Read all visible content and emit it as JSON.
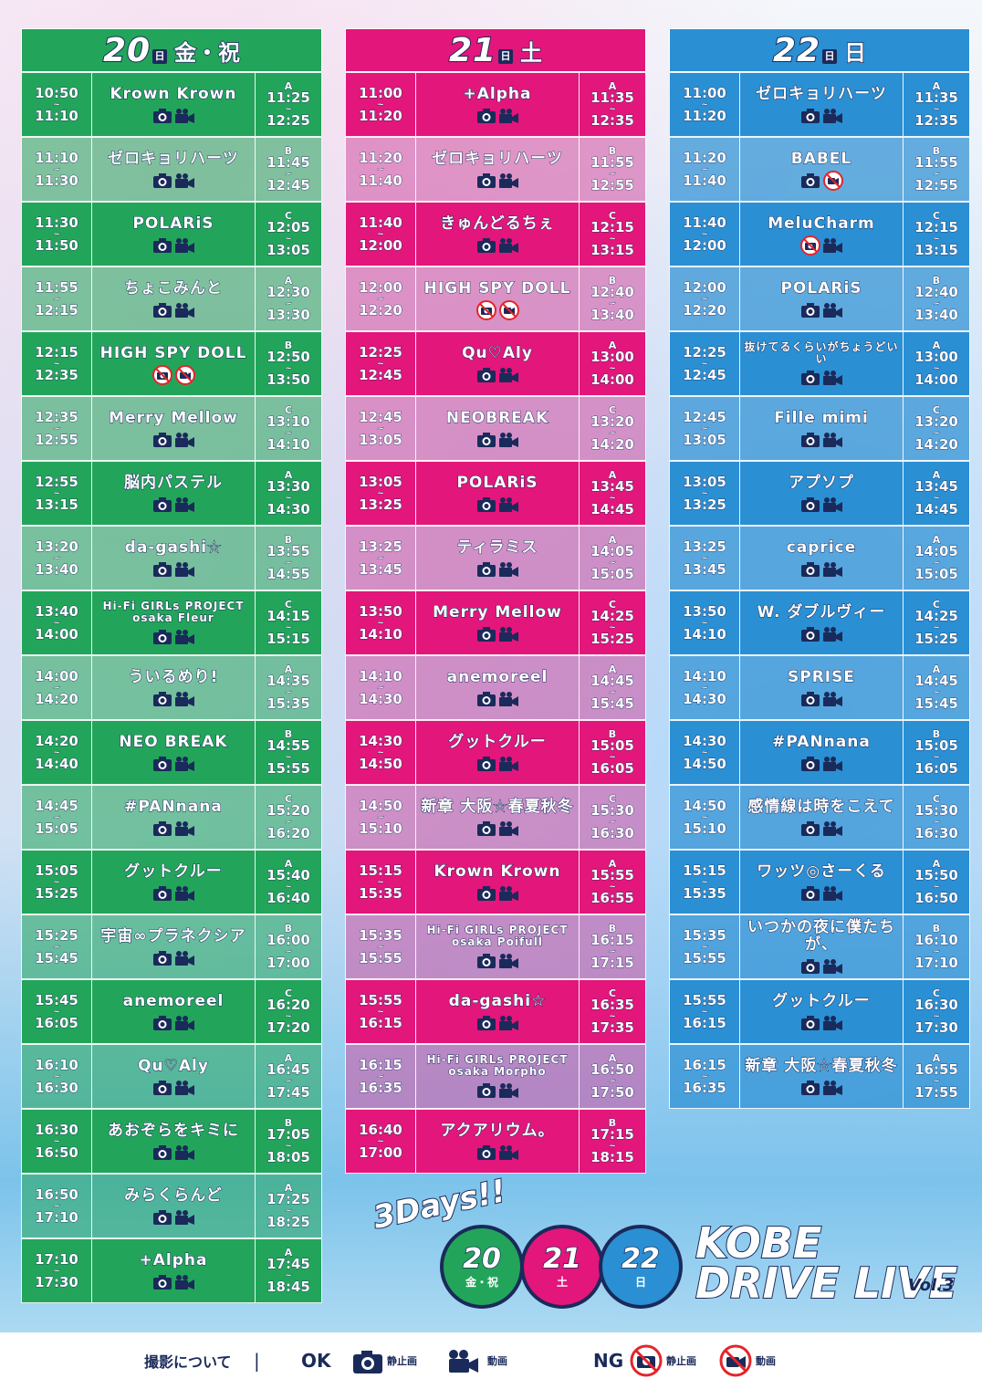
{
  "days": [
    {
      "day": "20",
      "unit": "日",
      "dow": "金・祝",
      "theme": "g",
      "color": "#22a55a",
      "rows": [
        {
          "s": "10:50",
          "e": "11:10",
          "name": "Krown Krown",
          "stage": "A",
          "rs": "11:25",
          "re": "12:25",
          "icons": "ok"
        },
        {
          "s": "11:10",
          "e": "11:30",
          "name": "ゼロキョリハーツ",
          "stage": "B",
          "rs": "11:45",
          "re": "12:45",
          "icons": "ok"
        },
        {
          "s": "11:30",
          "e": "11:50",
          "name": "POLARiS",
          "stage": "C",
          "rs": "12:05",
          "re": "13:05",
          "icons": "ok"
        },
        {
          "s": "11:55",
          "e": "12:15",
          "name": "ちょこみんと",
          "stage": "A",
          "rs": "12:30",
          "re": "13:30",
          "icons": "ok"
        },
        {
          "s": "12:15",
          "e": "12:35",
          "name": "HIGH SPY DOLL",
          "stage": "B",
          "rs": "12:50",
          "re": "13:50",
          "icons": "ng"
        },
        {
          "s": "12:35",
          "e": "12:55",
          "name": "Merry Mellow",
          "stage": "C",
          "rs": "13:10",
          "re": "14:10",
          "icons": "ok"
        },
        {
          "s": "12:55",
          "e": "13:15",
          "name": "脳内パステル",
          "stage": "A",
          "rs": "13:30",
          "re": "14:30",
          "icons": "ok"
        },
        {
          "s": "13:20",
          "e": "13:40",
          "name": "da-gashi☆",
          "stage": "B",
          "rs": "13:55",
          "re": "14:55",
          "icons": "ok"
        },
        {
          "s": "13:40",
          "e": "14:00",
          "name": "Hi-Fi GIRLs PROJECT osaka Fleur",
          "stage": "C",
          "rs": "14:15",
          "re": "15:15",
          "icons": "ok",
          "small": true
        },
        {
          "s": "14:00",
          "e": "14:20",
          "name": "ういるめり!",
          "stage": "A",
          "rs": "14:35",
          "re": "15:35",
          "icons": "ok"
        },
        {
          "s": "14:20",
          "e": "14:40",
          "name": "NEO BREAK",
          "stage": "B",
          "rs": "14:55",
          "re": "15:55",
          "icons": "ok"
        },
        {
          "s": "14:45",
          "e": "15:05",
          "name": "#PANnana",
          "stage": "C",
          "rs": "15:20",
          "re": "16:20",
          "icons": "ok"
        },
        {
          "s": "15:05",
          "e": "15:25",
          "name": "グットクルー",
          "stage": "A",
          "rs": "15:40",
          "re": "16:40",
          "icons": "ok"
        },
        {
          "s": "15:25",
          "e": "15:45",
          "name": "宇宙∞プラネクシア",
          "stage": "B",
          "rs": "16:00",
          "re": "17:00",
          "icons": "ok"
        },
        {
          "s": "15:45",
          "e": "16:05",
          "name": "anemoreel",
          "stage": "C",
          "rs": "16:20",
          "re": "17:20",
          "icons": "ok"
        },
        {
          "s": "16:10",
          "e": "16:30",
          "name": "Qu♡Aly",
          "stage": "A",
          "rs": "16:45",
          "re": "17:45",
          "icons": "ok"
        },
        {
          "s": "16:30",
          "e": "16:50",
          "name": "あおぞらをキミに",
          "stage": "B",
          "rs": "17:05",
          "re": "18:05",
          "icons": "ok"
        },
        {
          "s": "16:50",
          "e": "17:10",
          "name": "みらくらんど",
          "stage": "A",
          "rs": "17:25",
          "re": "18:25",
          "icons": "ok"
        },
        {
          "s": "17:10",
          "e": "17:30",
          "name": "+Alpha",
          "stage": "A",
          "rs": "17:45",
          "re": "18:45",
          "icons": "ok"
        }
      ]
    },
    {
      "day": "21",
      "unit": "日",
      "dow": "土",
      "theme": "p",
      "color": "#e3167b",
      "rows": [
        {
          "s": "11:00",
          "e": "11:20",
          "name": "+Alpha",
          "stage": "A",
          "rs": "11:35",
          "re": "12:35",
          "icons": "ok"
        },
        {
          "s": "11:20",
          "e": "11:40",
          "name": "ゼロキョリハーツ",
          "stage": "B",
          "rs": "11:55",
          "re": "12:55",
          "icons": "ok"
        },
        {
          "s": "11:40",
          "e": "12:00",
          "name": "きゅんどるちぇ",
          "stage": "C",
          "rs": "12:15",
          "re": "13:15",
          "icons": "ok"
        },
        {
          "s": "12:00",
          "e": "12:20",
          "name": "HIGH SPY DOLL",
          "stage": "B",
          "rs": "12:40",
          "re": "13:40",
          "icons": "ng"
        },
        {
          "s": "12:25",
          "e": "12:45",
          "name": "Qu♡Aly",
          "stage": "A",
          "rs": "13:00",
          "re": "14:00",
          "icons": "ok"
        },
        {
          "s": "12:45",
          "e": "13:05",
          "name": "NEOBREAK",
          "stage": "C",
          "rs": "13:20",
          "re": "14:20",
          "icons": "ok"
        },
        {
          "s": "13:05",
          "e": "13:25",
          "name": "POLARiS",
          "stage": "A",
          "rs": "13:45",
          "re": "14:45",
          "icons": "ok"
        },
        {
          "s": "13:25",
          "e": "13:45",
          "name": "ティラミス",
          "stage": "A",
          "rs": "14:05",
          "re": "15:05",
          "icons": "ok"
        },
        {
          "s": "13:50",
          "e": "14:10",
          "name": "Merry Mellow",
          "stage": "C",
          "rs": "14:25",
          "re": "15:25",
          "icons": "ok"
        },
        {
          "s": "14:10",
          "e": "14:30",
          "name": "anemoreel",
          "stage": "A",
          "rs": "14:45",
          "re": "15:45",
          "icons": "ok"
        },
        {
          "s": "14:30",
          "e": "14:50",
          "name": "グットクルー",
          "stage": "B",
          "rs": "15:05",
          "re": "16:05",
          "icons": "ok"
        },
        {
          "s": "14:50",
          "e": "15:10",
          "name": "新章 大阪☆春夏秋冬",
          "stage": "C",
          "rs": "15:30",
          "re": "16:30",
          "icons": "ok"
        },
        {
          "s": "15:15",
          "e": "15:35",
          "name": "Krown Krown",
          "stage": "A",
          "rs": "15:55",
          "re": "16:55",
          "icons": "ok"
        },
        {
          "s": "15:35",
          "e": "15:55",
          "name": "Hi-Fi GIRLs PROJECT osaka Poifull",
          "stage": "B",
          "rs": "16:15",
          "re": "17:15",
          "icons": "ok",
          "small": true
        },
        {
          "s": "15:55",
          "e": "16:15",
          "name": "da-gashi☆",
          "stage": "C",
          "rs": "16:35",
          "re": "17:35",
          "icons": "ok"
        },
        {
          "s": "16:15",
          "e": "16:35",
          "name": "Hi-Fi GIRLs PROJECT osaka Morpho",
          "stage": "A",
          "rs": "16:50",
          "re": "17:50",
          "icons": "ok",
          "small": true
        },
        {
          "s": "16:40",
          "e": "17:00",
          "name": "アクアリウム。",
          "stage": "B",
          "rs": "17:15",
          "re": "18:15",
          "icons": "ok"
        }
      ]
    },
    {
      "day": "22",
      "unit": "日",
      "dow": "日",
      "theme": "b",
      "color": "#2b8fd3",
      "rows": [
        {
          "s": "11:00",
          "e": "11:20",
          "name": "ゼロキョリハーツ",
          "stage": "A",
          "rs": "11:35",
          "re": "12:35",
          "icons": "ok"
        },
        {
          "s": "11:20",
          "e": "11:40",
          "name": "BABEL",
          "stage": "B",
          "rs": "11:55",
          "re": "12:55",
          "icons": "ng-video"
        },
        {
          "s": "11:40",
          "e": "12:00",
          "name": "MeluCharm",
          "stage": "C",
          "rs": "12:15",
          "re": "13:15",
          "icons": "ng-photo"
        },
        {
          "s": "12:00",
          "e": "12:20",
          "name": "POLARiS",
          "stage": "B",
          "rs": "12:40",
          "re": "13:40",
          "icons": "ok"
        },
        {
          "s": "12:25",
          "e": "12:45",
          "name": "抜けてるくらいがちょうどいい",
          "stage": "A",
          "rs": "13:00",
          "re": "14:00",
          "icons": "ok",
          "small": true
        },
        {
          "s": "12:45",
          "e": "13:05",
          "name": "Fille mimi",
          "stage": "C",
          "rs": "13:20",
          "re": "14:20",
          "icons": "ok"
        },
        {
          "s": "13:05",
          "e": "13:25",
          "name": "アプソプ",
          "stage": "A",
          "rs": "13:45",
          "re": "14:45",
          "icons": "ok"
        },
        {
          "s": "13:25",
          "e": "13:45",
          "name": "caprice",
          "stage": "A",
          "rs": "14:05",
          "re": "15:05",
          "icons": "ok"
        },
        {
          "s": "13:50",
          "e": "14:10",
          "name": "W. ダブルヴィー",
          "stage": "C",
          "rs": "14:25",
          "re": "15:25",
          "icons": "ok"
        },
        {
          "s": "14:10",
          "e": "14:30",
          "name": "SPRISE",
          "stage": "A",
          "rs": "14:45",
          "re": "15:45",
          "icons": "ok"
        },
        {
          "s": "14:30",
          "e": "14:50",
          "name": "#PANnana",
          "stage": "B",
          "rs": "15:05",
          "re": "16:05",
          "icons": "ok"
        },
        {
          "s": "14:50",
          "e": "15:10",
          "name": "感情線は時をこえて",
          "stage": "C",
          "rs": "15:30",
          "re": "16:30",
          "icons": "ok"
        },
        {
          "s": "15:15",
          "e": "15:35",
          "name": "ワッツ◎さーくる",
          "stage": "A",
          "rs": "15:50",
          "re": "16:50",
          "icons": "ok"
        },
        {
          "s": "15:35",
          "e": "15:55",
          "name": "いつかの夜に僕たちが、",
          "stage": "B",
          "rs": "16:10",
          "re": "17:10",
          "icons": "ok"
        },
        {
          "s": "15:55",
          "e": "16:15",
          "name": "グットクルー",
          "stage": "C",
          "rs": "16:30",
          "re": "17:30",
          "icons": "ok"
        },
        {
          "s": "16:15",
          "e": "16:35",
          "name": "新章 大阪☆春夏秋冬",
          "stage": "A",
          "rs": "16:55",
          "re": "17:55",
          "icons": "ok"
        }
      ]
    }
  ],
  "logo": {
    "days_text": "3Days!!",
    "circles": [
      {
        "n": "20",
        "u": "日",
        "d": "金・祝",
        "color": "#22a55a"
      },
      {
        "n": "21",
        "u": "日",
        "d": "土",
        "color": "#e3167b"
      },
      {
        "n": "22",
        "u": "日",
        "d": "日",
        "color": "#2b8fd3"
      }
    ],
    "title1": "KOBE",
    "title2": "DRIVE LIVE",
    "vol": "Vol.3"
  },
  "footer": {
    "label": "撮影について",
    "ok": "OK",
    "still": "静止画",
    "video": "動画",
    "ng": "NG"
  }
}
